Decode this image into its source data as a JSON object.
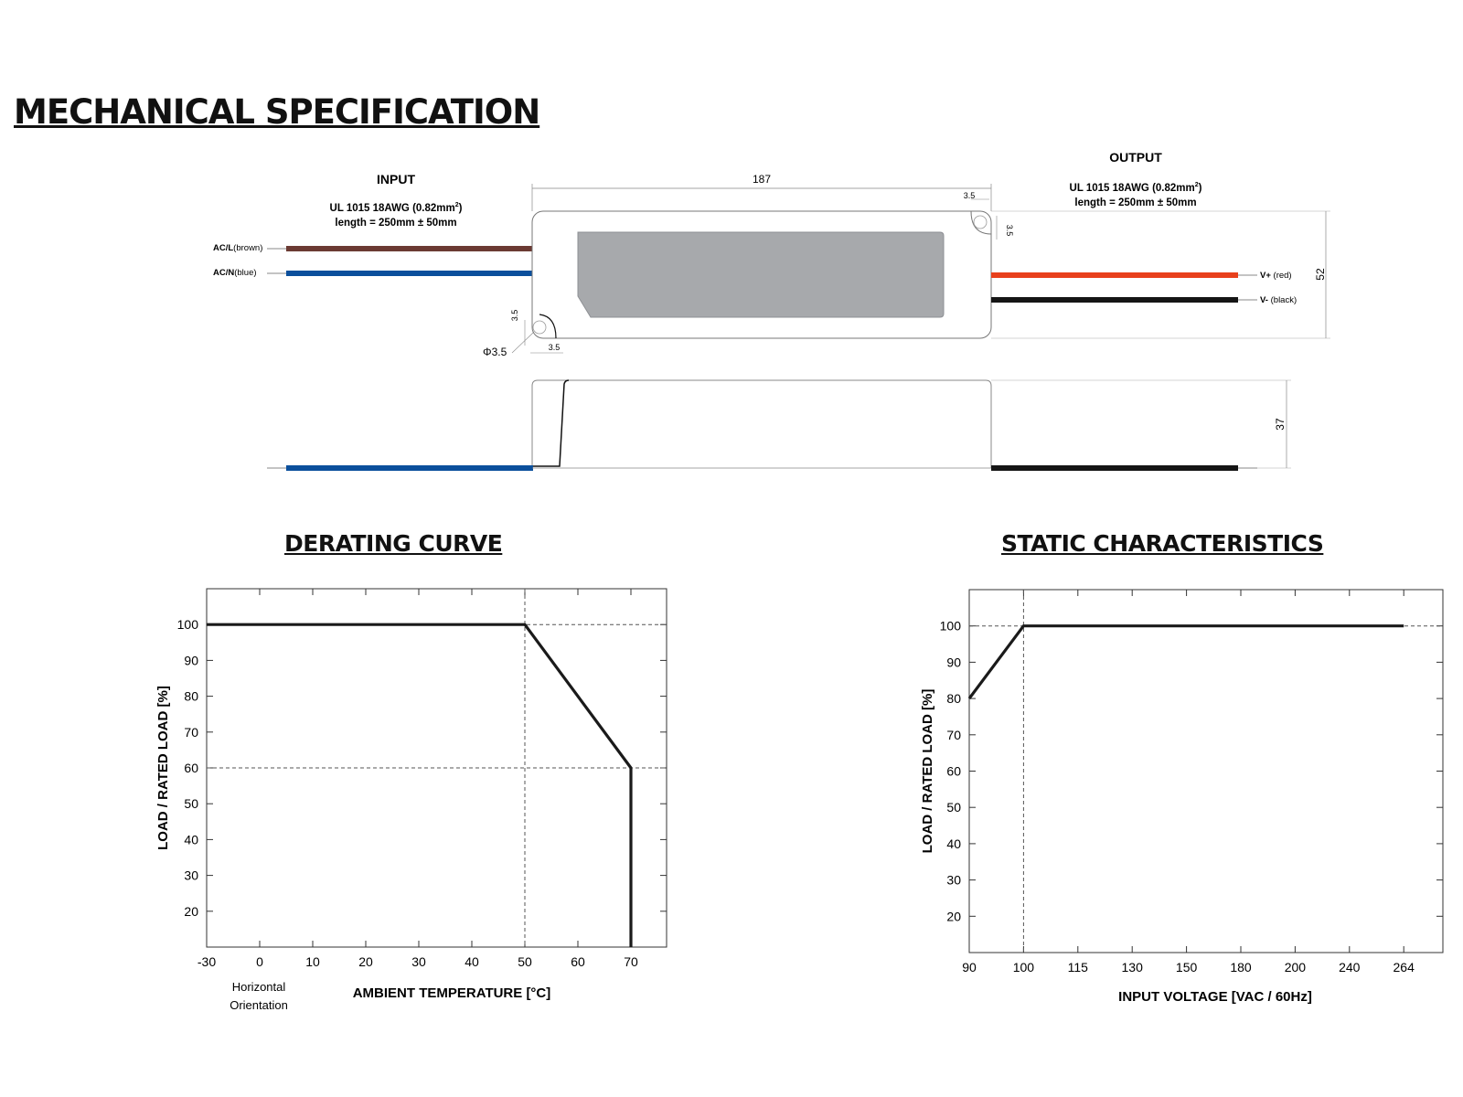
{
  "title": "MECHANICAL SPECIFICATION",
  "mechanical": {
    "input": {
      "heading": "INPUT",
      "wire_spec": "UL 1015 18AWG (0.82mm",
      "wire_spec_sup": "2",
      "wire_spec_end": ")",
      "length": "length = 250mm ± 50mm",
      "wires": [
        {
          "label": "AC/L",
          "color_name": "(brown)",
          "color": "#6b3a33"
        },
        {
          "label": "AC/N",
          "color_name": "(blue)",
          "color": "#0b4f9c"
        }
      ]
    },
    "output": {
      "heading": "OUTPUT",
      "wire_spec": "UL 1015 18AWG (0.82mm",
      "wire_spec_sup": "2",
      "wire_spec_end": ")",
      "length": "length = 250mm ± 50mm",
      "wires": [
        {
          "label": "V+",
          "color_name": "(red)",
          "color": "#e8401c"
        },
        {
          "label": "V-",
          "color_name": "(black)",
          "color": "#151515"
        }
      ]
    },
    "dimensions": {
      "length": "187",
      "width": "52",
      "height": "37",
      "hole_offset_a": "3.5",
      "hole_offset_b": "3.5",
      "hole_offset_c": "3.5",
      "hole_offset_d": "3.5",
      "hole_diameter": "Φ3.5"
    }
  },
  "chart_data": [
    {
      "type": "line",
      "title": "DERATING CURVE",
      "xlabel": "AMBIENT TEMPERATURE [°C]",
      "ylabel": "LOAD / RATED LOAD [%]",
      "x_ticks": [
        "-30",
        "0",
        "10",
        "20",
        "30",
        "40",
        "50",
        "60",
        "70"
      ],
      "y_ticks": [
        "20",
        "30",
        "40",
        "50",
        "60",
        "70",
        "80",
        "90",
        "100"
      ],
      "ylim": [
        10,
        110
      ],
      "x_note_line1": "Horizontal",
      "x_note_line2": "Orientation",
      "series": [
        {
          "x": [
            "-30",
            "50",
            "70",
            "70"
          ],
          "y": [
            100,
            100,
            60,
            10
          ]
        }
      ],
      "reference_lines": [
        {
          "orientation": "horizontal",
          "value": 100,
          "style": "dashed"
        },
        {
          "orientation": "horizontal",
          "value": 60,
          "style": "dashed"
        },
        {
          "orientation": "vertical",
          "value": "50",
          "style": "dashed"
        }
      ],
      "grid": false
    },
    {
      "type": "line",
      "title": "STATIC CHARACTERISTICS",
      "xlabel": "INPUT VOLTAGE [VAC / 60Hz]",
      "ylabel": "LOAD / RATED LOAD [%]",
      "x_ticks": [
        "90",
        "100",
        "115",
        "130",
        "150",
        "180",
        "200",
        "240",
        "264"
      ],
      "y_ticks": [
        "20",
        "30",
        "40",
        "50",
        "60",
        "70",
        "80",
        "90",
        "100"
      ],
      "ylim": [
        10,
        110
      ],
      "series": [
        {
          "x": [
            "90",
            "100",
            "264"
          ],
          "y": [
            80,
            100,
            100
          ]
        }
      ],
      "reference_lines": [
        {
          "orientation": "horizontal",
          "value": 100,
          "style": "dashed"
        },
        {
          "orientation": "vertical",
          "value": "100",
          "style": "dashed"
        }
      ],
      "grid": false
    }
  ]
}
